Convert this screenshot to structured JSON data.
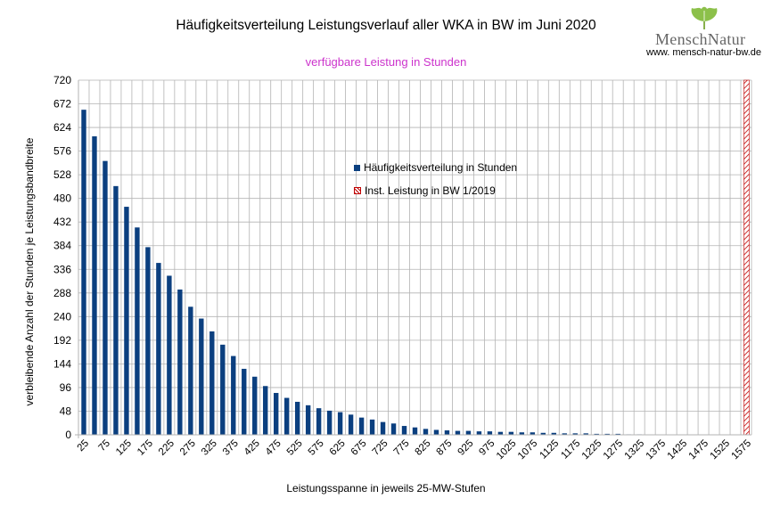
{
  "header": {
    "title": "Häufigkeitsverteilung Leistungsverlauf aller WKA in BW im Juni 2020",
    "subtitle": "verfügbare Leistung in Stunden"
  },
  "brand": {
    "name": "MenschNatur",
    "url": "www. mensch-natur-bw.de",
    "logo_icon": "ginkgo-leaf-icon"
  },
  "colors": {
    "bar": "#0b3f7f",
    "installed_line": "#c00000",
    "subtitle": "#cc33cc",
    "grid": "#b3b3b3"
  },
  "chart_data": {
    "type": "bar",
    "title": "Häufigkeitsverteilung Leistungsverlauf aller WKA in BW im Juni 2020",
    "subtitle": "verfügbare Leistung in Stunden",
    "xlabel": "Leistungsspanne in jeweils 25-MW-Stufen",
    "ylabel": "verbleibende Anzahl der Stunden je Leistungsbandbreite",
    "ylim": [
      0,
      720
    ],
    "yticks": [
      0,
      48,
      96,
      144,
      192,
      240,
      288,
      336,
      384,
      432,
      480,
      528,
      576,
      624,
      672,
      720
    ],
    "categories": [
      25,
      50,
      75,
      100,
      125,
      150,
      175,
      200,
      225,
      250,
      275,
      300,
      325,
      350,
      375,
      400,
      425,
      450,
      475,
      500,
      525,
      550,
      575,
      600,
      625,
      650,
      675,
      700,
      725,
      750,
      775,
      800,
      825,
      850,
      875,
      900,
      925,
      950,
      975,
      1000,
      1025,
      1050,
      1075,
      1100,
      1125,
      1150,
      1175,
      1200,
      1225,
      1250,
      1275,
      1300,
      1325,
      1350,
      1375,
      1400,
      1425,
      1450,
      1475,
      1500,
      1525,
      1550,
      1575
    ],
    "xticks": [
      "25",
      "75",
      "125",
      "175",
      "225",
      "275",
      "325",
      "375",
      "425",
      "475",
      "525",
      "575",
      "625",
      "675",
      "725",
      "775",
      "825",
      "875",
      "925",
      "975",
      "1025",
      "1075",
      "1125",
      "1175",
      "1225",
      "1275",
      "1325",
      "1375",
      "1425",
      "1475",
      "1525",
      "1575"
    ],
    "series": [
      {
        "name": "Häufigkeitsverteilung in Stunden",
        "values": [
          660,
          606,
          556,
          505,
          463,
          421,
          381,
          349,
          323,
          295,
          260,
          236,
          210,
          183,
          160,
          134,
          118,
          99,
          85,
          75,
          67,
          60,
          54,
          49,
          46,
          41,
          35,
          31,
          26,
          23,
          18,
          15,
          12,
          10,
          9,
          8,
          8,
          7,
          7,
          6,
          6,
          5,
          5,
          4,
          4,
          3,
          3,
          3,
          2,
          2,
          2,
          1,
          1,
          0,
          0,
          0,
          0,
          0,
          0,
          0,
          0,
          0,
          0
        ]
      },
      {
        "name": "Inst. Leistung in BW 1/2019",
        "x": 1576,
        "style": "hatched-vertical-line"
      }
    ],
    "grid": true,
    "legend_placement": "center"
  }
}
